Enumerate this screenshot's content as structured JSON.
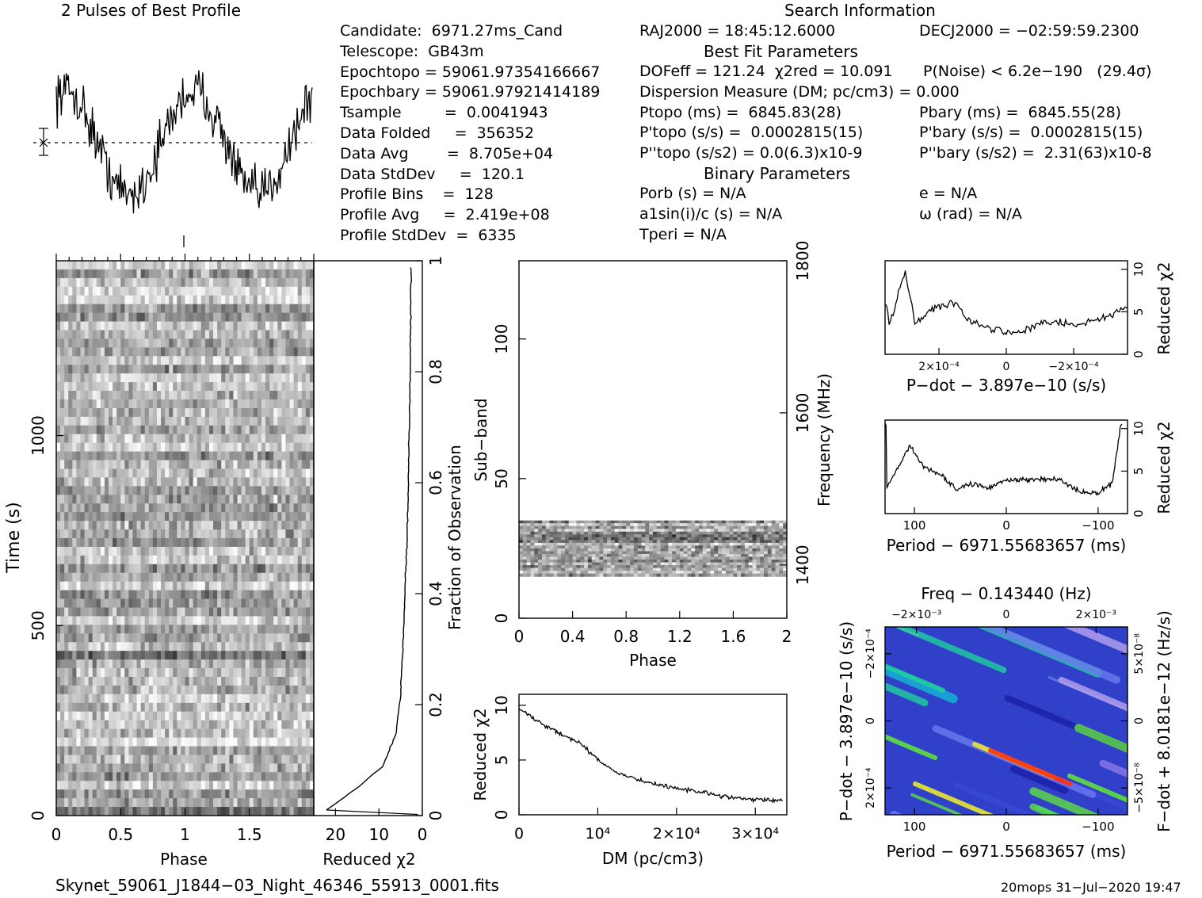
{
  "header": {
    "title": "2 Pulses of Best Profile",
    "search_info": "Search Information",
    "best_fit": "Best Fit Parameters",
    "binary_params": "Binary Parameters"
  },
  "left_info": [
    "Candidate:  6971.27ms_Cand",
    "Telescope:  GB43m",
    "Epochtopo = 59061.97354166667",
    "Epochbary = 59061.97921414189",
    "Tsample         =  0.0041943",
    "Data Folded     =  356352",
    "Data Avg        =  8.705e+04",
    "Data StdDev     =  120.1",
    "Profile Bins    =  128",
    "Profile Avg     =  2.419e+08",
    "Profile StdDev  =  6335"
  ],
  "mid_info": {
    "ra": "RAJ2000 = 18:45:12.6000",
    "dof": "DOFeff = 121.24  χ2red = 10.091",
    "dm": "Dispersion Measure (DM; pc/cm3) = 0.000",
    "ptopo": "Ptopo (ms) =  6845.83(28)",
    "pdtopo": "P'topo (s/s) =  0.0002815(15)",
    "pddtopo": "P''topo (s/s2) = 0.0(6.3)x10-9",
    "porb": "Porb (s) = N/A",
    "asini": "a1sin(i)/c (s) = N/A",
    "tperi": "Tperi = N/A"
  },
  "right_info": {
    "dec": "DECJ2000 = −02:59:59.2300",
    "pnoise": "P(Noise) < 6.2e−190   (29.4σ)",
    "pbary": "Pbary (ms) =  6845.55(28)",
    "pdbary": "P'bary (s/s) =  0.0002815(15)",
    "pddbary": "P''bary (s/s2) =  2.31(63)x10-8",
    "ecc": "e = N/A",
    "omega": "ω (rad) = N/A"
  },
  "footer": {
    "filename": "Skynet_59061_J1844−03_Night_46346_55913_0001.fits",
    "stamp": "20mops 31−Jul−2020 19:47"
  },
  "axes": {
    "time_label": "Time (s)",
    "phase_label": "Phase",
    "redchi_label": "Reduced χ2",
    "frac_label": "Fraction of Observation",
    "subband_label": "Sub−band",
    "freq_label": "Frequency (MHz)",
    "dm_label": "DM (pc/cm3)",
    "pdot_label": "P−dot − 3.897e−10 (s/s)",
    "period_label": "Period − 6971.55683657 (ms)",
    "freq_top_label": "Freq − 0.143440 (Hz)",
    "fdot_label": "F−dot + 8.0181e−12 (Hz/s)"
  },
  "chart_data": [
    {
      "id": "profile",
      "type": "line",
      "title": "2 Pulses of Best Profile",
      "xlabel": "Phase",
      "xlim": [
        0,
        2
      ],
      "pulses": 2,
      "description_of_shape": "two noisy pulses peaking near phase 0.05 and 1.05, minima near 0.5 and 1.5"
    },
    {
      "id": "time_phase",
      "type": "heatmap",
      "xlabel": "Phase",
      "ylabel": "Time (s)",
      "xticks": [
        "0",
        "0.5",
        "1",
        "1.5"
      ],
      "yticks": [
        "0",
        "500",
        "1000"
      ],
      "ylim": [
        0,
        1460
      ]
    },
    {
      "id": "chi_vs_time",
      "type": "line",
      "xlabel": "Reduced χ2",
      "ylabel": "Fraction of Observation",
      "xticks": [
        "20",
        "10",
        "0"
      ],
      "yticks": [
        "0",
        "0.2",
        "0.4",
        "0.6",
        "0.8",
        "1"
      ],
      "x": [
        22,
        15,
        9,
        6,
        5,
        4.5,
        4,
        3.5,
        3.2,
        3.0,
        2.8,
        2.6
      ],
      "y": [
        0.01,
        0.05,
        0.09,
        0.15,
        0.22,
        0.3,
        0.4,
        0.5,
        0.6,
        0.7,
        0.8,
        0.97
      ]
    },
    {
      "id": "subband_phase",
      "type": "heatmap",
      "xlabel": "Phase",
      "ylabel": "Sub−band",
      "y2label": "Frequency (MHz)",
      "xticks": [
        "0",
        "0.4",
        "0.8",
        "1.2",
        "1.6",
        "2"
      ],
      "yticks": [
        "0",
        "50",
        "100"
      ],
      "y2ticks": [
        "1400",
        "1600",
        "1800"
      ],
      "active_subbands": [
        15,
        35
      ]
    },
    {
      "id": "dm_chi",
      "type": "line",
      "xlabel": "DM (pc/cm3)",
      "ylabel": "Reduced χ2",
      "xticks": [
        "0",
        "10^4",
        "2x10^4",
        "3x10^4"
      ],
      "yticks": [
        "0",
        "5",
        "10"
      ],
      "x": [
        0,
        2000,
        5000,
        8000,
        10000,
        12000,
        15000,
        18000,
        20000,
        23000,
        26000,
        30000,
        33000
      ],
      "y": [
        9.8,
        8.7,
        7.5,
        6.4,
        5.0,
        4.0,
        3.2,
        2.7,
        2.4,
        2.1,
        1.7,
        1.4,
        1.3
      ]
    },
    {
      "id": "pdot_chi",
      "type": "line",
      "xlabel": "P−dot − 3.897e−10 (s/s)",
      "ylabel": "Reduced χ2",
      "xticks": [
        "2x10^-4",
        "0",
        "−2x10^-4"
      ],
      "yticks": [
        "0",
        "5",
        "10"
      ],
      "x": [
        0.00035,
        0.0003,
        0.00027,
        0.00022,
        0.00015,
        0.0001,
        5e-05,
        0,
        -5e-05,
        -0.0001,
        -0.00015,
        -0.0002,
        -0.00025,
        -0.0003,
        -0.00035
      ],
      "y": [
        3.0,
        9.8,
        3.5,
        5.5,
        6.0,
        3.5,
        3.2,
        2.5,
        2.8,
        3.5,
        3.8,
        3.5,
        3.8,
        4.5,
        5.5
      ]
    },
    {
      "id": "period_chi",
      "type": "line",
      "xlabel": "Period − 6971.55683657 (ms)",
      "ylabel": "Reduced χ2",
      "xticks": [
        "100",
        "0",
        "−100"
      ],
      "yticks": [
        "0",
        "5",
        "10"
      ],
      "x": [
        130,
        115,
        105,
        90,
        70,
        55,
        40,
        20,
        0,
        -20,
        -40,
        -60,
        -80,
        -100,
        -115,
        -125
      ],
      "y": [
        3.0,
        6.0,
        8.0,
        5.5,
        4.5,
        2.8,
        3.5,
        3.0,
        4.0,
        4.0,
        4.0,
        4.0,
        2.5,
        2.5,
        3.5,
        10.5
      ]
    },
    {
      "id": "period_pdot",
      "type": "heatmap",
      "xlabel": "Period − 6971.55683657 (ms)",
      "ylabel": "P−dot − 3.897e−10 (s/s)",
      "x2label": "Freq − 0.143440 (Hz)",
      "y2label": "F−dot + 8.0181e−12 (Hz/s)",
      "xticks": [
        "100",
        "0",
        "−100"
      ],
      "x2ticks": [
        "−2x10^-3",
        "0",
        "2x10^-3"
      ],
      "yticks": [
        "−2x10^-4",
        "0",
        "2x10^-4"
      ],
      "y2ticks": [
        "5x10^-8",
        "0",
        "−5x10^-8"
      ]
    }
  ]
}
